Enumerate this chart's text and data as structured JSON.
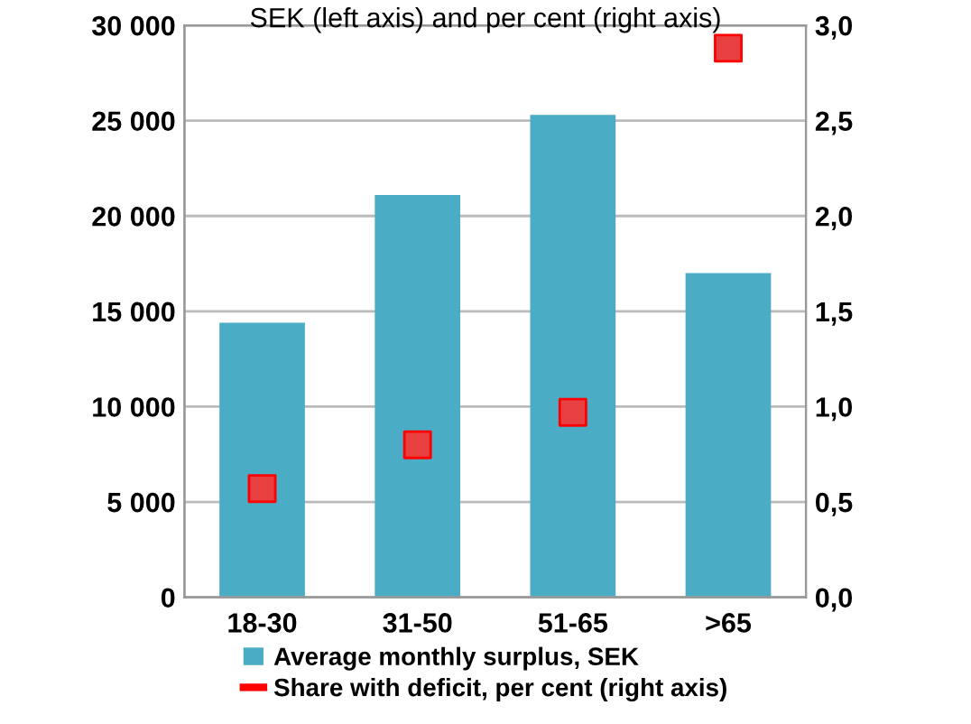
{
  "chart_data": {
    "type": "bar",
    "subtitle": "SEK (left axis) and per cent (right axis)",
    "categories": [
      "18-30",
      "31-50",
      "51-65",
      ">65"
    ],
    "series": [
      {
        "name": "Average monthly surplus, SEK",
        "color": "#4bacc6",
        "values": [
          14400,
          21100,
          25300,
          17000
        ]
      },
      {
        "name": "Share with deficit, per cent (right axis)",
        "type": "scatter",
        "axis": "y2",
        "marker": "square",
        "color": "#e84040",
        "values": [
          0.57,
          0.8,
          0.97,
          2.88
        ]
      }
    ],
    "ylim": [
      0,
      30000
    ],
    "yticks": [
      {
        "value": 0,
        "label": "0"
      },
      {
        "value": 5000,
        "label": "5 000"
      },
      {
        "value": 10000,
        "label": "10 000"
      },
      {
        "value": 15000,
        "label": "15 000"
      },
      {
        "value": 20000,
        "label": "20 000"
      },
      {
        "value": 25000,
        "label": "25 000"
      },
      {
        "value": 30000,
        "label": "30 000"
      }
    ],
    "y2lim": [
      0,
      3.0
    ],
    "y2ticks": [
      {
        "value": 0,
        "label": "0,0"
      },
      {
        "value": 0.5,
        "label": "0,5"
      },
      {
        "value": 1.0,
        "label": "1,0"
      },
      {
        "value": 1.5,
        "label": "1,5"
      },
      {
        "value": 2.0,
        "label": "2,0"
      },
      {
        "value": 2.5,
        "label": "2,5"
      },
      {
        "value": 3.0,
        "label": "3,0"
      }
    ],
    "grid": "y",
    "legend": "bottom"
  }
}
